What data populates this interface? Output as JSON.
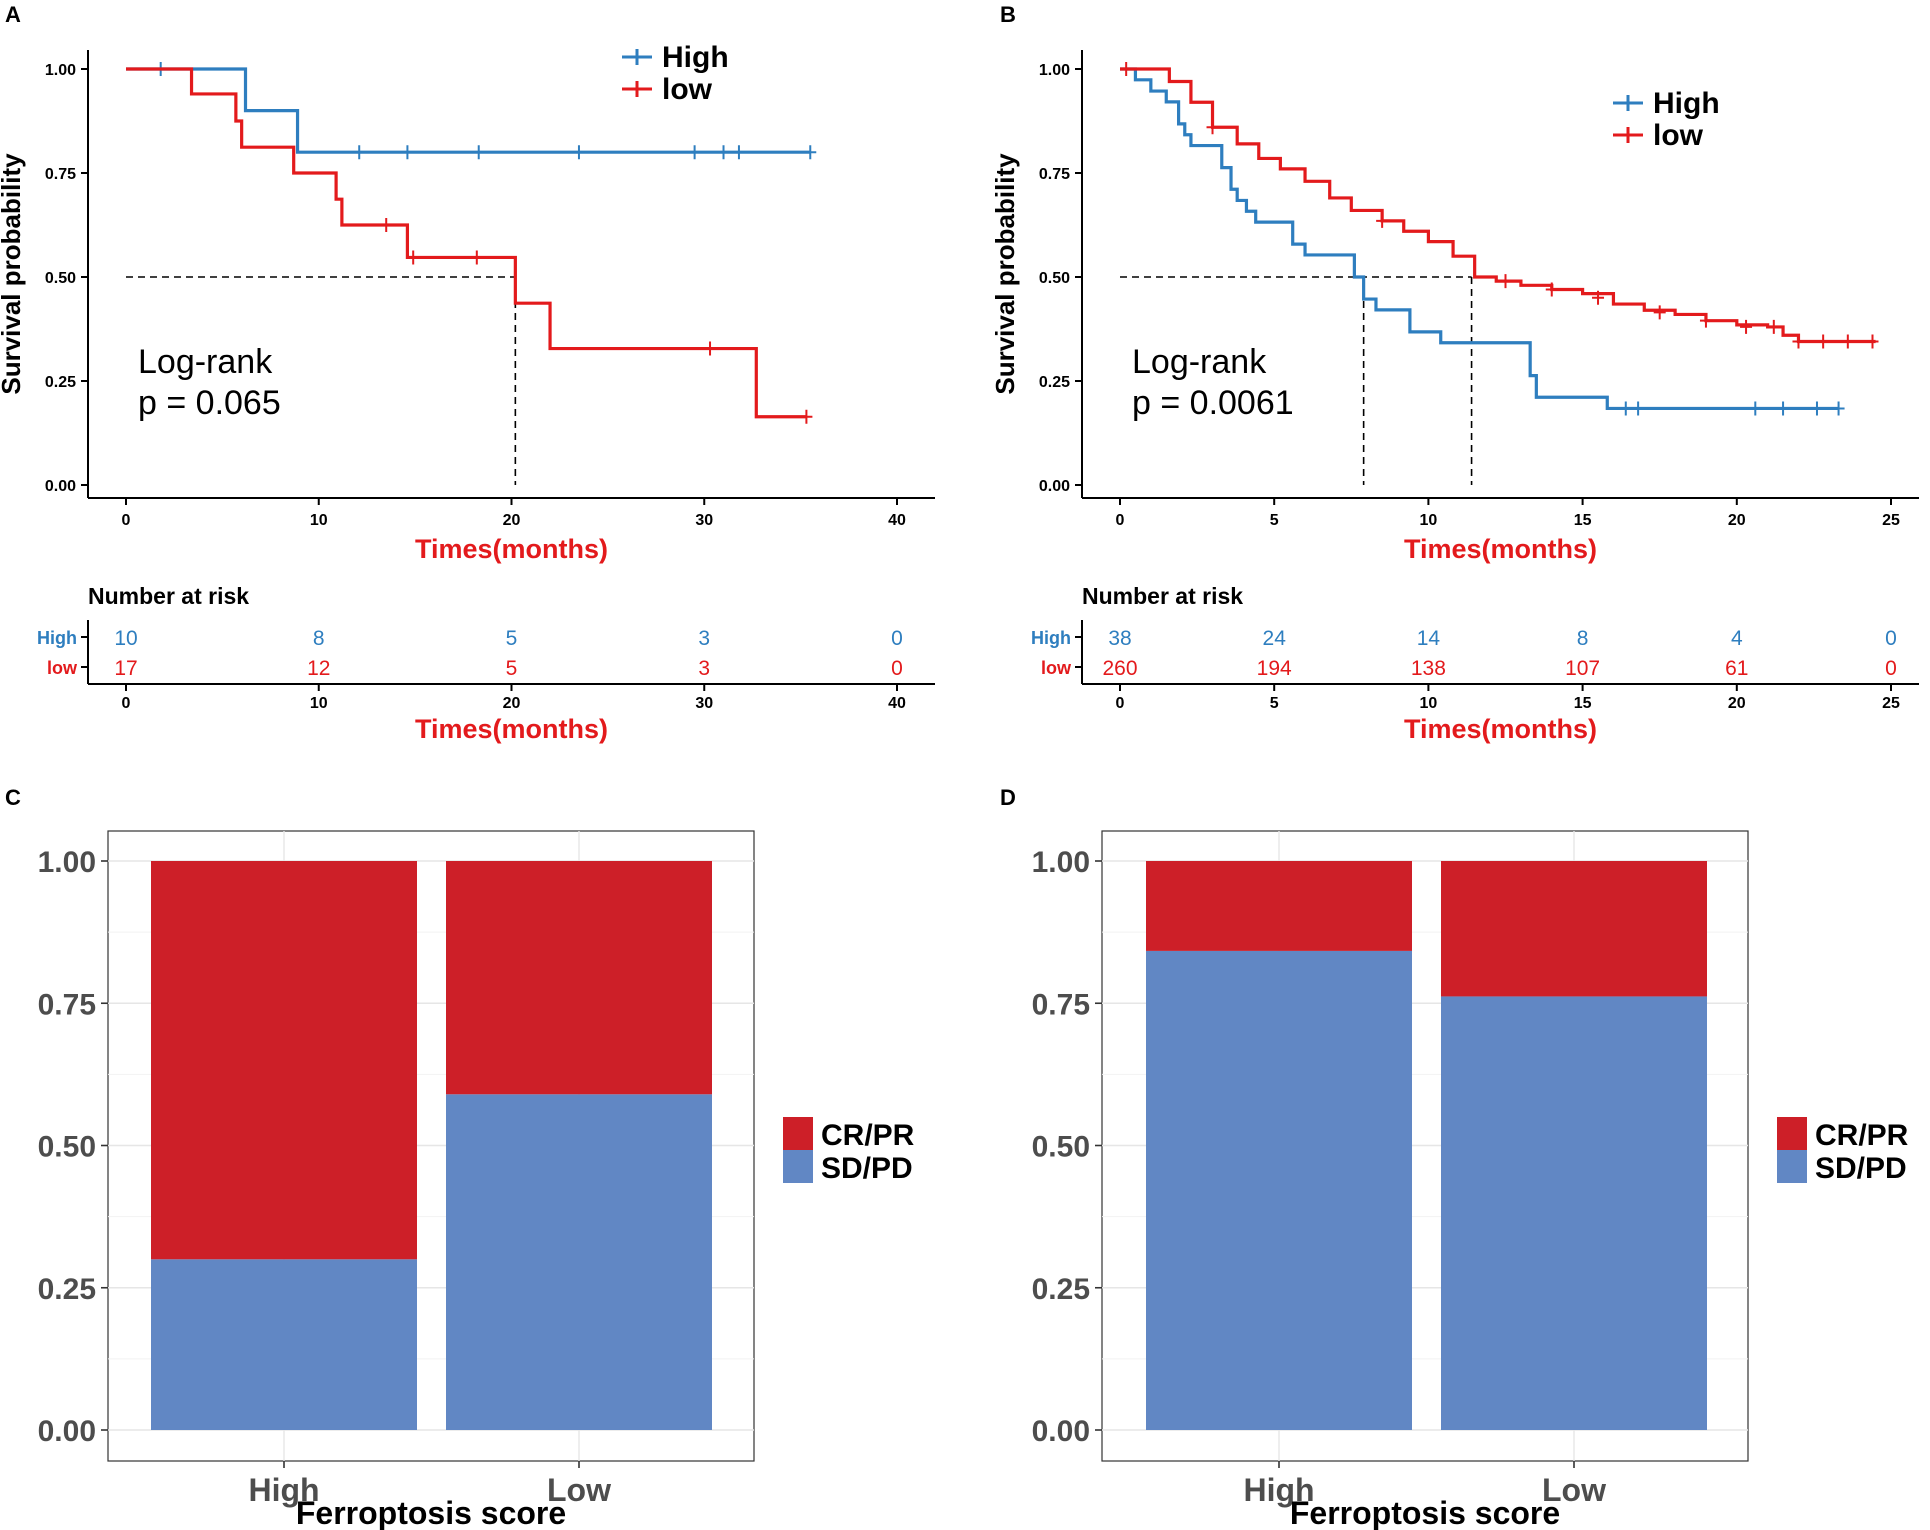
{
  "colors": {
    "high": "#2e7ebf",
    "low": "#e31a1c",
    "cr_pr": "#cd1f28",
    "sd_pd": "#6187c4",
    "axis": "#000000",
    "grid": "#e6e6e6",
    "gray_text": "#4d4d4d"
  },
  "panels": {
    "A": {
      "label": "A",
      "legend": [
        "High",
        "low"
      ],
      "logrank": "Log-rank",
      "pvalue": "p = 0.065",
      "risk_title": "Number at risk",
      "risk_labels": [
        "High",
        "low"
      ],
      "risk_high": [
        "10",
        "8",
        "5",
        "3",
        "0"
      ],
      "risk_low": [
        "17",
        "12",
        "5",
        "3",
        "0"
      ]
    },
    "B": {
      "label": "B",
      "legend": [
        "High",
        "low"
      ],
      "logrank": "Log-rank",
      "pvalue": "p = 0.0061",
      "risk_title": "Number at risk",
      "risk_labels": [
        "High",
        "low"
      ],
      "risk_high": [
        "38",
        "24",
        "14",
        "8",
        "4",
        "0"
      ],
      "risk_low": [
        "260",
        "194",
        "138",
        "107",
        "61",
        "0"
      ]
    },
    "C": {
      "label": "C",
      "legend": [
        "CR/PR",
        "SD/PD"
      ]
    },
    "D": {
      "label": "D",
      "legend": [
        "CR/PR",
        "SD/PD"
      ]
    }
  },
  "chart_data": [
    {
      "id": "A",
      "type": "line",
      "subtype": "kaplan-meier",
      "ylabel": "Survival probability",
      "xlabel": "Times(months)",
      "xlim": [
        0,
        40
      ],
      "xticks": [
        0,
        10,
        20,
        30,
        40
      ],
      "ylim": [
        0,
        1
      ],
      "yticks": [
        "0.00",
        "0.25",
        "0.50",
        "0.75",
        "1.00"
      ],
      "median_line": 0.5,
      "median_times": [
        20.2
      ],
      "series": [
        {
          "name": "High",
          "steps": [
            [
              0,
              1
            ],
            [
              6.2,
              1
            ],
            [
              6.2,
              0.9
            ],
            [
              8.9,
              0.9
            ],
            [
              8.9,
              0.8
            ],
            [
              35.5,
              0.8
            ]
          ],
          "censors": [
            [
              1.8,
              1
            ],
            [
              12.1,
              0.8
            ],
            [
              14.6,
              0.8
            ],
            [
              18.3,
              0.8
            ],
            [
              23.5,
              0.8
            ],
            [
              29.5,
              0.8
            ],
            [
              31,
              0.8
            ],
            [
              31.8,
              0.8
            ],
            [
              35.5,
              0.8
            ]
          ]
        },
        {
          "name": "low",
          "steps": [
            [
              0,
              1
            ],
            [
              3.4,
              1
            ],
            [
              3.4,
              0.94
            ],
            [
              5.7,
              0.94
            ],
            [
              5.7,
              0.875
            ],
            [
              6,
              0.875
            ],
            [
              6,
              0.812
            ],
            [
              8.7,
              0.812
            ],
            [
              8.7,
              0.75
            ],
            [
              10.9,
              0.75
            ],
            [
              10.9,
              0.687
            ],
            [
              11.2,
              0.687
            ],
            [
              11.2,
              0.625
            ],
            [
              14.6,
              0.625
            ],
            [
              14.6,
              0.547
            ],
            [
              20.2,
              0.547
            ],
            [
              20.2,
              0.437
            ],
            [
              22,
              0.437
            ],
            [
              22,
              0.328
            ],
            [
              32.7,
              0.328
            ],
            [
              32.7,
              0.164
            ],
            [
              35.3,
              0.164
            ]
          ],
          "censors": [
            [
              13.5,
              0.625
            ],
            [
              14.9,
              0.547
            ],
            [
              18.2,
              0.547
            ],
            [
              30.3,
              0.328
            ],
            [
              35.3,
              0.164
            ]
          ]
        }
      ]
    },
    {
      "id": "B",
      "type": "line",
      "subtype": "kaplan-meier",
      "ylabel": "Survival probability",
      "xlabel": "Times(months)",
      "xlim": [
        0,
        25
      ],
      "xticks": [
        0,
        5,
        10,
        15,
        20,
        25
      ],
      "ylim": [
        0,
        1
      ],
      "yticks": [
        "0.00",
        "0.25",
        "0.50",
        "0.75",
        "1.00"
      ],
      "median_line": 0.5,
      "median_times": [
        7.9,
        11.4
      ],
      "series": [
        {
          "name": "High",
          "steps": [
            [
              0,
              1
            ],
            [
              0.5,
              1
            ],
            [
              0.5,
              0.974
            ],
            [
              1,
              0.974
            ],
            [
              1,
              0.947
            ],
            [
              1.5,
              0.947
            ],
            [
              1.5,
              0.921
            ],
            [
              1.9,
              0.921
            ],
            [
              1.9,
              0.868
            ],
            [
              2.1,
              0.868
            ],
            [
              2.1,
              0.842
            ],
            [
              2.3,
              0.842
            ],
            [
              2.3,
              0.816
            ],
            [
              3.3,
              0.816
            ],
            [
              3.3,
              0.763
            ],
            [
              3.6,
              0.763
            ],
            [
              3.6,
              0.711
            ],
            [
              3.8,
              0.711
            ],
            [
              3.8,
              0.684
            ],
            [
              4.1,
              0.684
            ],
            [
              4.1,
              0.658
            ],
            [
              4.4,
              0.658
            ],
            [
              4.4,
              0.632
            ],
            [
              5.6,
              0.632
            ],
            [
              5.6,
              0.579
            ],
            [
              6,
              0.579
            ],
            [
              6,
              0.553
            ],
            [
              7.6,
              0.553
            ],
            [
              7.6,
              0.5
            ],
            [
              7.9,
              0.5
            ],
            [
              7.9,
              0.447
            ],
            [
              8.3,
              0.447
            ],
            [
              8.3,
              0.421
            ],
            [
              9.4,
              0.421
            ],
            [
              9.4,
              0.368
            ],
            [
              10.4,
              0.368
            ],
            [
              10.4,
              0.342
            ],
            [
              13.3,
              0.342
            ],
            [
              13.3,
              0.263
            ],
            [
              13.5,
              0.263
            ],
            [
              13.5,
              0.211
            ],
            [
              15.8,
              0.211
            ],
            [
              15.8,
              0.184
            ],
            [
              23.3,
              0.184
            ]
          ],
          "censors": [
            [
              16.4,
              0.184
            ],
            [
              16.8,
              0.184
            ],
            [
              20.6,
              0.184
            ],
            [
              21.5,
              0.184
            ],
            [
              22.6,
              0.184
            ],
            [
              23.3,
              0.184
            ]
          ]
        },
        {
          "name": "low",
          "steps": [
            [
              0,
              1
            ],
            [
              0.8,
              1
            ],
            [
              1.6,
              0.97
            ],
            [
              2.3,
              0.92
            ],
            [
              3,
              0.86
            ],
            [
              3.8,
              0.82
            ],
            [
              4.5,
              0.785
            ],
            [
              5.2,
              0.76
            ],
            [
              6,
              0.73
            ],
            [
              6.8,
              0.69
            ],
            [
              7.5,
              0.66
            ],
            [
              8.5,
              0.635
            ],
            [
              9.2,
              0.61
            ],
            [
              10,
              0.585
            ],
            [
              10.8,
              0.55
            ],
            [
              11.5,
              0.5
            ],
            [
              12.2,
              0.49
            ],
            [
              13,
              0.48
            ],
            [
              14,
              0.47
            ],
            [
              15,
              0.46
            ],
            [
              16,
              0.435
            ],
            [
              17,
              0.42
            ],
            [
              18,
              0.41
            ],
            [
              19,
              0.395
            ],
            [
              20,
              0.385
            ],
            [
              21,
              0.38
            ],
            [
              21.2,
              0.38
            ],
            [
              21.5,
              0.36
            ],
            [
              22,
              0.345
            ],
            [
              24.5,
              0.345
            ]
          ],
          "censors": [
            [
              0.2,
              1
            ],
            [
              3,
              0.86
            ],
            [
              8.5,
              0.635
            ],
            [
              12.5,
              0.49
            ],
            [
              14,
              0.47
            ],
            [
              15.5,
              0.45
            ],
            [
              17.5,
              0.415
            ],
            [
              19,
              0.395
            ],
            [
              20.3,
              0.38
            ],
            [
              21.2,
              0.38
            ],
            [
              22,
              0.345
            ],
            [
              22.8,
              0.345
            ],
            [
              23.6,
              0.345
            ],
            [
              24.4,
              0.345
            ]
          ]
        }
      ]
    },
    {
      "id": "C",
      "type": "bar",
      "subtype": "stacked-proportion",
      "categories": [
        "High",
        "Low"
      ],
      "xlabel": "Ferroptosis score",
      "ylim": [
        0,
        1
      ],
      "yticks": [
        "0.00",
        "0.25",
        "0.50",
        "0.75",
        "1.00"
      ],
      "series": [
        {
          "name": "SD/PD",
          "values": [
            0.3,
            0.59
          ]
        },
        {
          "name": "CR/PR",
          "values": [
            0.7,
            0.41
          ]
        }
      ]
    },
    {
      "id": "D",
      "type": "bar",
      "subtype": "stacked-proportion",
      "categories": [
        "High",
        "Low"
      ],
      "xlabel": "Ferroptosis score",
      "ylim": [
        0,
        1
      ],
      "yticks": [
        "0.00",
        "0.25",
        "0.50",
        "0.75",
        "1.00"
      ],
      "series": [
        {
          "name": "SD/PD",
          "values": [
            0.842,
            0.762
          ]
        },
        {
          "name": "CR/PR",
          "values": [
            0.158,
            0.238
          ]
        }
      ]
    }
  ]
}
